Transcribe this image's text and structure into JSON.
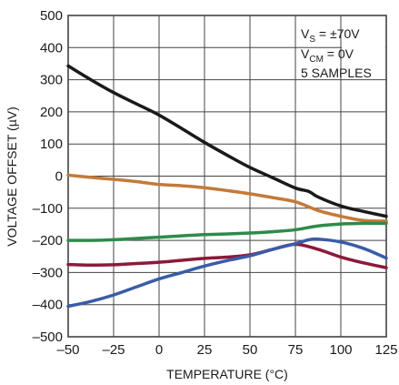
{
  "chart_data": {
    "type": "line",
    "title": "",
    "xlabel": "TEMPERATURE (°C)",
    "ylabel": "VOLTAGE OFFSET (µV)",
    "xlim": [
      -50,
      125
    ],
    "ylim": [
      -500,
      500
    ],
    "xticks": [
      -50,
      -25,
      0,
      25,
      50,
      75,
      100,
      125
    ],
    "yticks": [
      500,
      400,
      300,
      200,
      100,
      0,
      -100,
      -200,
      -300,
      -400,
      -500
    ],
    "xtick_labels": [
      "–50",
      "–25",
      "0",
      "25",
      "50",
      "75",
      "100",
      "125"
    ],
    "ytick_labels": [
      "500",
      "400",
      "300",
      "200",
      "100",
      "0",
      "–100",
      "–200",
      "–300",
      "–400",
      "–500"
    ],
    "grid": true,
    "annotation": {
      "line1_main": "V",
      "line1_sub": "S",
      "line1_rest": " = ±70V",
      "line2_main": "V",
      "line2_sub": "CM",
      "line2_rest": " = 0V",
      "line3": "5 SAMPLES"
    },
    "series": [
      {
        "color": "#1a1a1a",
        "x": [
          -50,
          -37.5,
          -25,
          -12.5,
          0,
          12.5,
          25,
          37.5,
          50,
          62.5,
          75,
          82.5,
          87.5,
          100,
          112.5,
          125
        ],
        "values": [
          343,
          300,
          260,
          225,
          190,
          148,
          105,
          65,
          27,
          -5,
          -37,
          -48,
          -65,
          -93,
          -110,
          -125
        ]
      },
      {
        "color": "#c47a3a",
        "x": [
          -50,
          -37.5,
          -25,
          -12.5,
          0,
          12.5,
          25,
          37.5,
          50,
          62.5,
          75,
          87.5,
          100,
          112.5,
          125
        ],
        "values": [
          3,
          -4,
          -10,
          -17,
          -26,
          -30,
          -36,
          -45,
          -55,
          -67,
          -80,
          -107,
          -125,
          -138,
          -140
        ]
      },
      {
        "color": "#2e8b4a",
        "x": [
          -50,
          -37.5,
          -25,
          -12.5,
          0,
          12.5,
          25,
          37.5,
          50,
          62.5,
          75,
          87.5,
          100,
          112.5,
          125
        ],
        "values": [
          -200,
          -200,
          -198,
          -194,
          -190,
          -186,
          -182,
          -180,
          -177,
          -173,
          -167,
          -155,
          -149,
          -147,
          -147
        ]
      },
      {
        "color": "#8b1a3a",
        "x": [
          -50,
          -37.5,
          -25,
          -12.5,
          0,
          12.5,
          25,
          37.5,
          50,
          62.5,
          75,
          87.5,
          100,
          112.5,
          125
        ],
        "values": [
          -275,
          -277,
          -276,
          -272,
          -268,
          -262,
          -256,
          -252,
          -245,
          -228,
          -212,
          -228,
          -252,
          -270,
          -285
        ]
      },
      {
        "color": "#3a5ca8",
        "x": [
          -50,
          -37.5,
          -25,
          -12.5,
          0,
          12.5,
          25,
          37.5,
          50,
          62.5,
          75,
          82.5,
          87.5,
          100,
          112.5,
          125
        ],
        "values": [
          -405,
          -390,
          -370,
          -345,
          -320,
          -300,
          -280,
          -263,
          -248,
          -228,
          -210,
          -198,
          -196,
          -205,
          -225,
          -255
        ]
      }
    ]
  }
}
